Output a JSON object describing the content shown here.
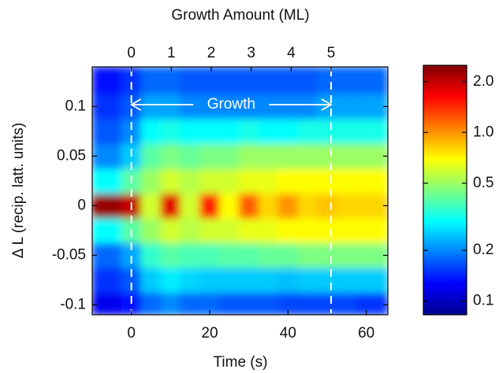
{
  "chart_data": {
    "type": "heatmap",
    "x2label": "Growth Amount (ML)",
    "xlabel": "Time (s)",
    "ylabel": "Δ L (recip. latt. units)",
    "x": [
      -10,
      -5,
      0,
      5,
      10,
      15,
      20,
      25,
      30,
      35,
      40,
      45,
      50,
      55,
      60,
      65
    ],
    "y": [
      -0.1,
      -0.075,
      -0.05,
      -0.025,
      0,
      0.025,
      0.05,
      0.075,
      0.1,
      0.125
    ],
    "z": [
      [
        0.12,
        0.12,
        0.13,
        0.18,
        0.2,
        0.18,
        0.18,
        0.17,
        0.17,
        0.17,
        0.16,
        0.16,
        0.16,
        0.16,
        0.15,
        0.15
      ],
      [
        0.15,
        0.15,
        0.17,
        0.25,
        0.28,
        0.26,
        0.25,
        0.25,
        0.25,
        0.25,
        0.24,
        0.25,
        0.25,
        0.25,
        0.25,
        0.25
      ],
      [
        0.18,
        0.18,
        0.22,
        0.35,
        0.4,
        0.38,
        0.38,
        0.4,
        0.4,
        0.42,
        0.42,
        0.45,
        0.45,
        0.45,
        0.45,
        0.45
      ],
      [
        0.3,
        0.3,
        0.4,
        0.5,
        0.6,
        0.55,
        0.6,
        0.6,
        0.65,
        0.65,
        0.7,
        0.7,
        0.7,
        0.7,
        0.7,
        0.7
      ],
      [
        2.3,
        2.3,
        2.0,
        0.6,
        1.8,
        0.6,
        1.5,
        0.7,
        1.2,
        0.8,
        1.0,
        0.8,
        0.85,
        0.8,
        0.8,
        0.8
      ],
      [
        0.3,
        0.3,
        0.4,
        0.5,
        0.6,
        0.55,
        0.6,
        0.6,
        0.65,
        0.65,
        0.7,
        0.7,
        0.7,
        0.7,
        0.7,
        0.7
      ],
      [
        0.2,
        0.2,
        0.25,
        0.4,
        0.45,
        0.42,
        0.45,
        0.45,
        0.5,
        0.5,
        0.5,
        0.5,
        0.5,
        0.5,
        0.5,
        0.5
      ],
      [
        0.17,
        0.17,
        0.2,
        0.3,
        0.32,
        0.3,
        0.3,
        0.3,
        0.32,
        0.3,
        0.3,
        0.32,
        0.32,
        0.32,
        0.32,
        0.32
      ],
      [
        0.15,
        0.15,
        0.17,
        0.22,
        0.22,
        0.2,
        0.2,
        0.2,
        0.2,
        0.2,
        0.2,
        0.2,
        0.22,
        0.22,
        0.22,
        0.22
      ],
      [
        0.13,
        0.13,
        0.15,
        0.18,
        0.18,
        0.17,
        0.17,
        0.17,
        0.17,
        0.17,
        0.17,
        0.17,
        0.18,
        0.18,
        0.18,
        0.18
      ]
    ],
    "xlim": [
      -10,
      65.5
    ],
    "xticks": [
      0,
      20,
      40,
      60
    ],
    "x2lim": [
      -0.98,
      6.42
    ],
    "x2ticks": [
      0,
      1,
      2,
      3,
      4,
      5
    ],
    "ylim": [
      -0.11,
      0.14
    ],
    "yticks": [
      -0.1,
      -0.05,
      0,
      0.05,
      0.1
    ],
    "colormap": "jet",
    "color_scale": "log",
    "clim": [
      0.083,
      2.5
    ],
    "cticks": [
      0.1,
      0.2,
      0.5,
      {
        "value": 1,
        "label": "1.0"
      },
      {
        "value": 2,
        "label": "2.0"
      }
    ],
    "annotation": {
      "text": "Growth",
      "start": 0,
      "end": 51
    }
  }
}
